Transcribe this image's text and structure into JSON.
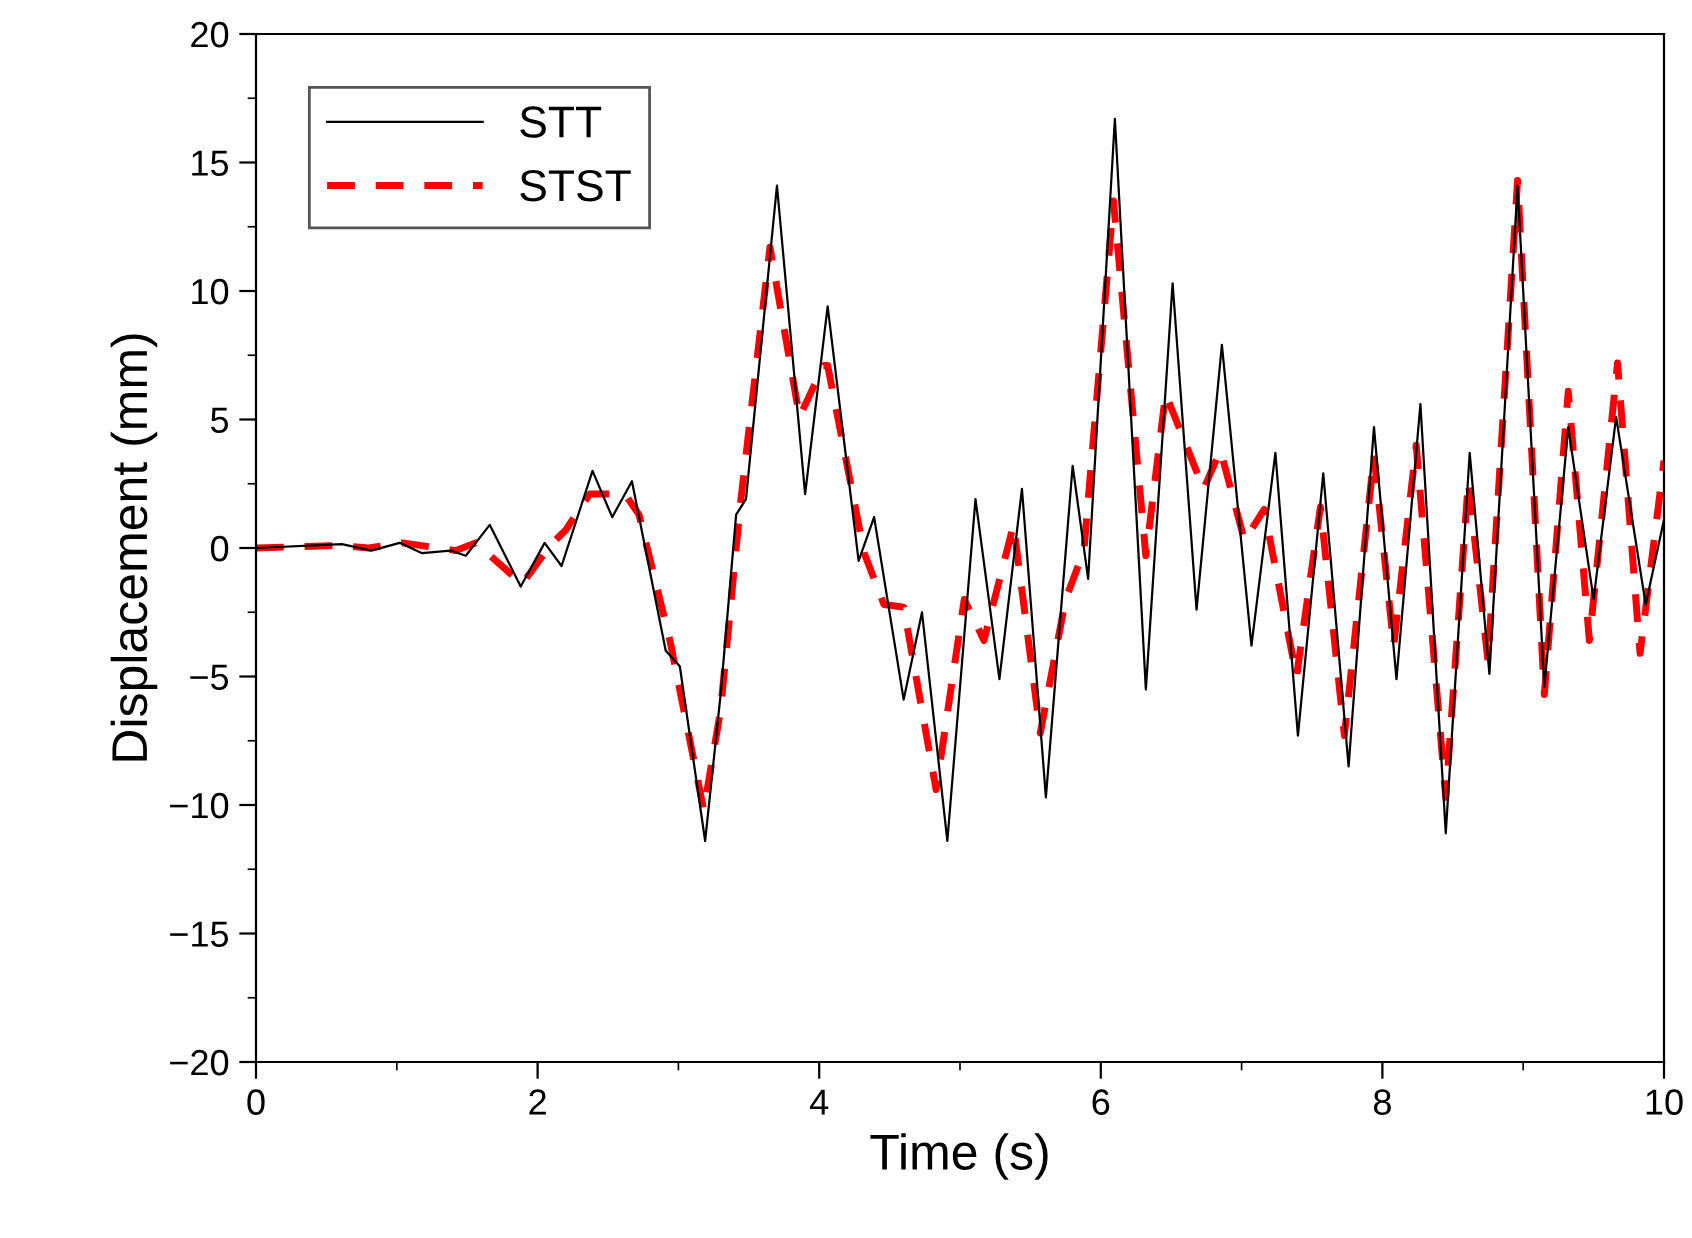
{
  "chart_data": {
    "type": "line",
    "xlabel": "Time (s)",
    "ylabel": "Displacement (mm)",
    "xlim": [
      0,
      10
    ],
    "ylim": [
      -20,
      20
    ],
    "xticks": [
      0,
      2,
      4,
      6,
      8,
      10
    ],
    "yticks": [
      -20,
      -15,
      -10,
      -5,
      0,
      5,
      10,
      15,
      20
    ],
    "grid": false,
    "legend": "top left",
    "series": [
      {
        "name": "STT",
        "color": "#000000",
        "line_style": "solid",
        "x": [
          0,
          0.61,
          0.82,
          1.02,
          1.18,
          1.38,
          1.49,
          1.66,
          1.88,
          2.05,
          2.17,
          2.39,
          2.53,
          2.67,
          2.91,
          3.01,
          3.19,
          3.3,
          3.41,
          3.48,
          3.7,
          3.9,
          4.06,
          4.28,
          4.39,
          4.6,
          4.73,
          4.91,
          5.11,
          5.28,
          5.44,
          5.61,
          5.8,
          5.91,
          6.1,
          6.32,
          6.51,
          6.68,
          6.86,
          7.07,
          7.24,
          7.4,
          7.58,
          7.76,
          7.94,
          8.1,
          8.27,
          8.45,
          8.62,
          8.76,
          8.96,
          9.15,
          9.32,
          9.5,
          9.66,
          9.87,
          10
        ],
        "values": [
          0,
          0.15,
          -0.1,
          0.2,
          -0.2,
          -0.1,
          -0.3,
          0.9,
          -1.5,
          0.2,
          -0.7,
          3.0,
          1.2,
          2.6,
          -4.0,
          -4.6,
          -11.4,
          -5.7,
          1.3,
          1.9,
          14.1,
          2.1,
          9.4,
          -0.5,
          1.2,
          -5.9,
          -2.5,
          -11.4,
          1.9,
          -5.1,
          2.3,
          -9.7,
          3.2,
          -1.2,
          16.7,
          -5.5,
          10.3,
          -2.4,
          7.9,
          -3.8,
          3.7,
          -7.3,
          2.9,
          -8.5,
          4.7,
          -5.1,
          5.6,
          -11.1,
          3.7,
          -4.9,
          14.1,
          -5.4,
          4.7,
          -2.0,
          5.1,
          -2.2,
          1.1
        ]
      },
      {
        "name": "STST",
        "color": "#ff0000",
        "line_style": "dashed",
        "x": [
          0,
          0.59,
          0.8,
          1.04,
          1.42,
          1.56,
          1.89,
          2.09,
          2.2,
          2.37,
          2.62,
          2.72,
          2.94,
          3.18,
          3.3,
          3.44,
          3.65,
          3.86,
          4.03,
          4.06,
          4.32,
          4.46,
          4.6,
          4.83,
          5.03,
          5.17,
          5.38,
          5.57,
          5.75,
          5.88,
          6.09,
          6.32,
          6.46,
          6.73,
          6.85,
          7.02,
          7.16,
          7.39,
          7.56,
          7.73,
          7.94,
          8.08,
          8.24,
          8.45,
          8.61,
          8.75,
          8.96,
          9.15,
          9.32,
          9.47,
          9.67,
          9.83,
          10
        ],
        "values": [
          0,
          0.1,
          0,
          0.2,
          -0.1,
          0.2,
          -1.4,
          0.1,
          0.7,
          2.1,
          2.1,
          1.3,
          -3.6,
          -10.2,
          -6.3,
          1.7,
          11.7,
          5.1,
          7.1,
          7.1,
          -0.2,
          -2.2,
          -2.3,
          -9.4,
          -2.0,
          -3.6,
          0.9,
          -7.2,
          -2.0,
          -0.1,
          13.5,
          -0.3,
          6.0,
          2.3,
          3.8,
          0.3,
          1.5,
          -5.0,
          1.6,
          -7.3,
          3.6,
          -3.8,
          4.0,
          -9.7,
          2.6,
          -4.4,
          14.3,
          -5.7,
          6.1,
          -3.6,
          7.2,
          -4.1,
          3.4
        ]
      }
    ]
  }
}
